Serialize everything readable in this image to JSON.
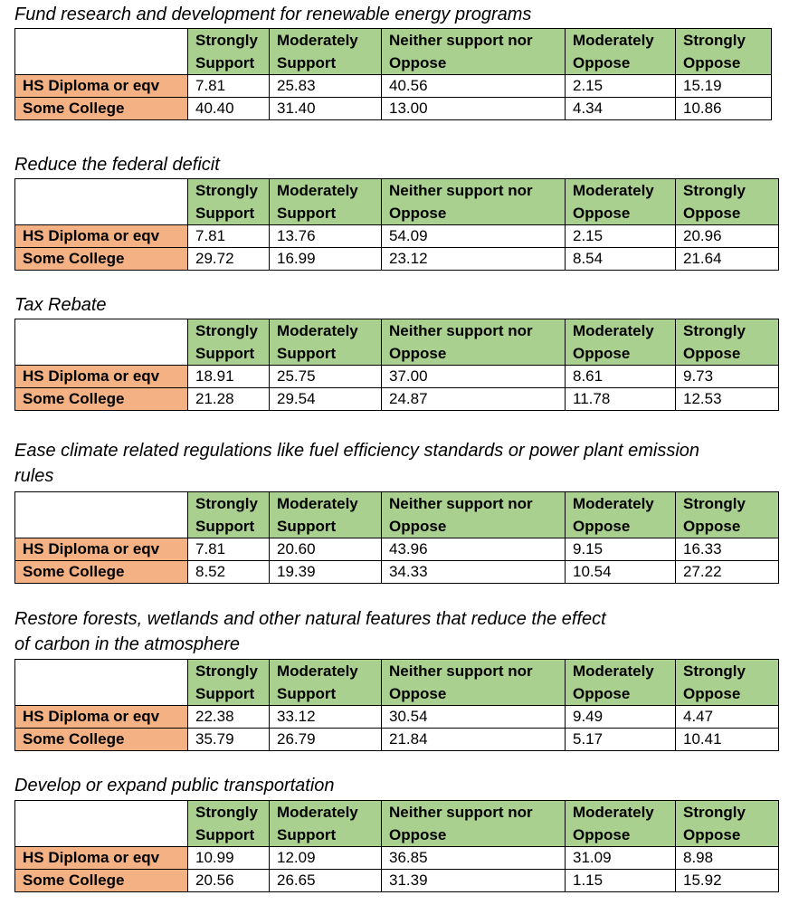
{
  "columns": [
    "Strongly Support",
    "Moderately Support",
    "Neither support nor Oppose",
    "Moderately Oppose",
    "Strongly Oppose"
  ],
  "column_lines": [
    [
      "Strongly",
      "Support"
    ],
    [
      "Moderately",
      "Support"
    ],
    [
      "Neither support nor",
      "Oppose"
    ],
    [
      "Moderately",
      "Oppose"
    ],
    [
      "Strongly",
      "Oppose"
    ]
  ],
  "row_labels": [
    "HS Diploma or eqv",
    "Some College"
  ],
  "tables": [
    {
      "title_lines": [
        "Fund research and development for renewable energy programs"
      ],
      "rows": [
        [
          "7.81",
          "25.83",
          "40.56",
          "2.15",
          "15.19"
        ],
        [
          "40.40",
          "31.40",
          "13.00",
          "4.34",
          "10.86"
        ]
      ]
    },
    {
      "title_lines": [
        "Reduce the federal deficit"
      ],
      "rows": [
        [
          "7.81",
          "13.76",
          "54.09",
          "2.15",
          "20.96"
        ],
        [
          "29.72",
          "16.99",
          "23.12",
          "8.54",
          "21.64"
        ]
      ]
    },
    {
      "title_lines": [
        "Tax Rebate"
      ],
      "rows": [
        [
          "18.91",
          "25.75",
          "37.00",
          "8.61",
          "9.73"
        ],
        [
          "21.28",
          "29.54",
          "24.87",
          "11.78",
          "12.53"
        ]
      ]
    },
    {
      "title_lines": [
        "Ease climate related regulations like fuel efficiency standards or power plant emission",
        "rules"
      ],
      "rows": [
        [
          "7.81",
          "20.60",
          "43.96",
          "9.15",
          "16.33"
        ],
        [
          "8.52",
          "19.39",
          "34.33",
          "10.54",
          "27.22"
        ]
      ]
    },
    {
      "title_lines": [
        "Restore forests, wetlands and other natural features that reduce the effect",
        "of carbon in the atmosphere"
      ],
      "rows": [
        [
          "22.38",
          "33.12",
          "30.54",
          "9.49",
          "4.47"
        ],
        [
          "35.79",
          "26.79",
          "21.84",
          "5.17",
          "10.41"
        ]
      ]
    },
    {
      "title_lines": [
        "Develop or expand public transportation"
      ],
      "rows": [
        [
          "10.99",
          "12.09",
          "36.85",
          "31.09",
          "8.98"
        ],
        [
          "20.56",
          "26.65",
          "31.39",
          "1.15",
          "15.92"
        ]
      ]
    }
  ]
}
